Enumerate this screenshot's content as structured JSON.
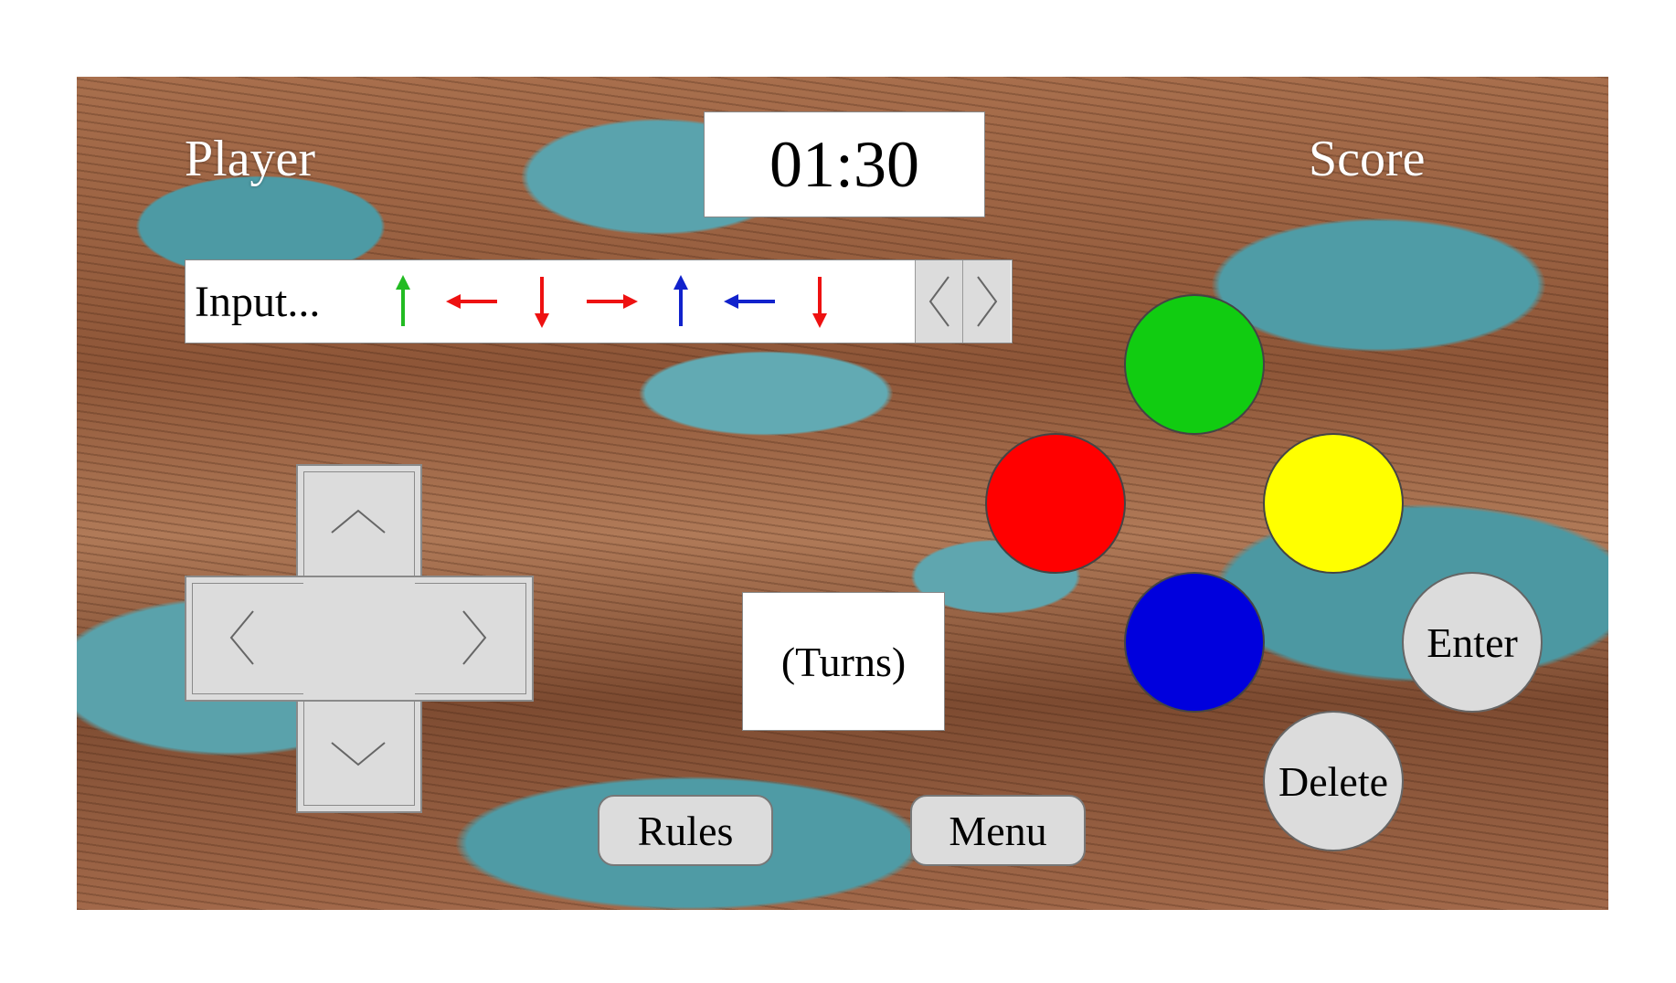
{
  "hud": {
    "player_label": "Player",
    "score_label": "Score",
    "timer": "01:30",
    "turns": "(Turns)"
  },
  "input_bar": {
    "label": "Input...",
    "sequence": [
      {
        "dir": "up",
        "color": "#22bb22"
      },
      {
        "dir": "left",
        "color": "#ee1111"
      },
      {
        "dir": "down",
        "color": "#ee1111"
      },
      {
        "dir": "right",
        "color": "#ee1111"
      },
      {
        "dir": "up",
        "color": "#1122cc"
      },
      {
        "dir": "left",
        "color": "#1122cc"
      },
      {
        "dir": "down",
        "color": "#ee1111"
      }
    ],
    "scroll_left_icon": "chevron-left-icon",
    "scroll_right_icon": "chevron-right-icon"
  },
  "color_buttons": {
    "top": "#11cc11",
    "left": "#ff0000",
    "right": "#ffff00",
    "bottom": "#0000dd"
  },
  "buttons": {
    "enter": "Enter",
    "delete": "Delete",
    "rules": "Rules",
    "menu": "Menu"
  }
}
